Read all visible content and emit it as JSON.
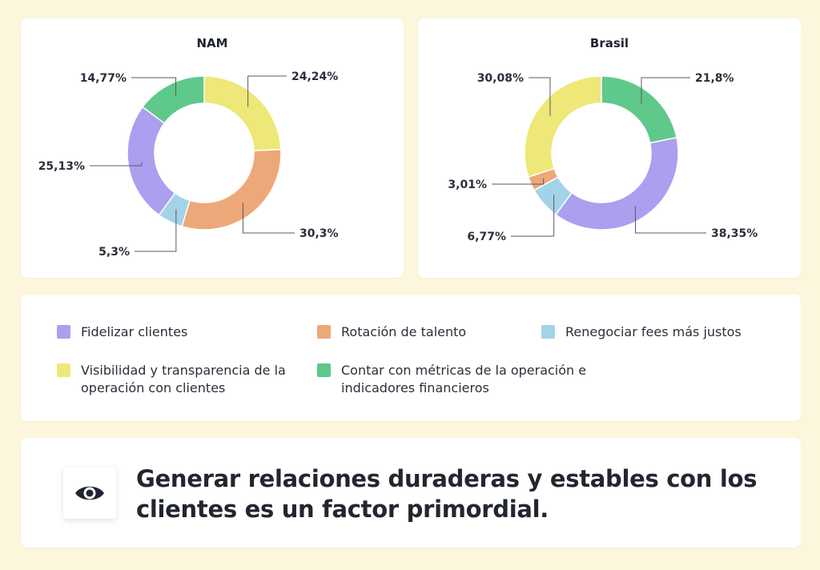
{
  "chart_data": [
    {
      "type": "pie",
      "title": "NAM",
      "categories": [
        "Visibilidad y transparencia de la operación con clientes",
        "Rotación de talento",
        "Renegociar fees más justos",
        "Fidelizar clientes",
        "Contar con métricas de la operación e indicadores financieros"
      ],
      "values": [
        24.24,
        30.3,
        5.3,
        25.13,
        14.77
      ],
      "labels": [
        "24,24%",
        "30,3%",
        "5,3%",
        "25,13%",
        "14,77%"
      ],
      "colors": [
        "#ede878",
        "#eda87a",
        "#a3d3e8",
        "#ab9ff0",
        "#5ec98a"
      ]
    },
    {
      "type": "pie",
      "title": "Brasil",
      "categories": [
        "Contar con métricas de la operación e indicadores financieros",
        "Fidelizar clientes",
        "Renegociar fees más justos",
        "Rotación de talento",
        "Visibilidad y transparencia de la operación con clientes"
      ],
      "values": [
        21.8,
        38.35,
        6.77,
        3.01,
        30.08
      ],
      "labels": [
        "21,8%",
        "38,35%",
        "6,77%",
        "3,01%",
        "30,08%"
      ],
      "colors": [
        "#5ec98a",
        "#ab9ff0",
        "#a3d3e8",
        "#eda87a",
        "#ede878"
      ]
    }
  ],
  "legend": [
    {
      "label": "Fidelizar clientes",
      "color": "#ab9ff0"
    },
    {
      "label": "Rotación de talento",
      "color": "#eda87a"
    },
    {
      "label": "Renegociar fees más justos",
      "color": "#a3d3e8"
    },
    {
      "label": "Visibilidad y transparencia de la operación con clientes",
      "color": "#ede878"
    },
    {
      "label": "Contar con métricas de la operación e indicadores financieros",
      "color": "#5ec98a"
    }
  ],
  "insight": {
    "icon": "eye-icon",
    "text": "Generar relaciones duraderas y estables con los clientes es un factor primordial."
  }
}
